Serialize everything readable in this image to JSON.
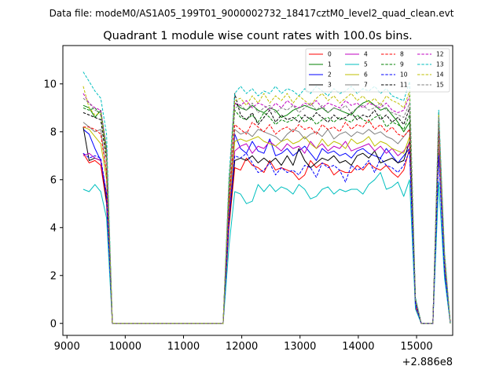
{
  "suptitle": "Data file: modeM0/AS1A05_199T01_9000002732_18417cztM0_level2_quad_clean.evt",
  "chart_data": {
    "type": "line",
    "title": "Quadrant 1 module wise count rates with 100.0s bins.",
    "xlabel": "",
    "ylabel": "",
    "x_offset_label": "+2.886e8",
    "xlim": [
      8930,
      15620
    ],
    "ylim": [
      -0.5,
      11.6
    ],
    "xticks": [
      9000,
      10000,
      11000,
      12000,
      13000,
      14000,
      15000
    ],
    "yticks": [
      0,
      2,
      4,
      6,
      8,
      10
    ],
    "grid": false,
    "legend_position": "top-right",
    "x": [
      9280,
      9380,
      9480,
      9580,
      9680,
      9780,
      9880,
      9980,
      10080,
      10180,
      10280,
      10380,
      10480,
      10580,
      10680,
      10780,
      10880,
      10980,
      11080,
      11180,
      11280,
      11380,
      11480,
      11580,
      11680,
      11780,
      11880,
      11980,
      12080,
      12180,
      12280,
      12380,
      12480,
      12580,
      12680,
      12780,
      12880,
      12980,
      13080,
      13180,
      13280,
      13380,
      13480,
      13580,
      13680,
      13780,
      13880,
      13980,
      14080,
      14180,
      14280,
      14380,
      14480,
      14580,
      14680,
      14780,
      14880,
      14980,
      15080,
      15180,
      15280,
      15380,
      15480,
      15580
    ],
    "series": [
      {
        "name": "0",
        "color": "#ff0000",
        "style": "solid",
        "values": [
          7.1,
          6.7,
          6.8,
          6.6,
          5.0,
          0,
          0,
          0,
          0,
          0,
          0,
          0,
          0,
          0,
          0,
          0,
          0,
          0,
          0,
          0,
          0,
          0,
          0,
          0,
          0,
          4.0,
          6.5,
          6.4,
          6.9,
          6.6,
          6.5,
          6.3,
          6.8,
          6.4,
          6.5,
          6.4,
          6.3,
          6.0,
          6.2,
          6.8,
          6.5,
          6.7,
          6.6,
          6.2,
          6.4,
          6.3,
          6.3,
          6.6,
          6.4,
          6.7,
          6.5,
          6.4,
          6.6,
          6.3,
          6.1,
          6.4,
          7.3,
          0.7,
          0,
          0,
          0,
          7.2,
          2.5,
          0
        ]
      },
      {
        "name": "1",
        "color": "#008000",
        "style": "solid",
        "values": [
          9.1,
          9.0,
          8.6,
          8.9,
          7.3,
          0,
          0,
          0,
          0,
          0,
          0,
          0,
          0,
          0,
          0,
          0,
          0,
          0,
          0,
          0,
          0,
          0,
          0,
          0,
          0,
          5.8,
          9.2,
          9.0,
          8.9,
          9.1,
          8.9,
          8.8,
          9.0,
          8.9,
          8.6,
          8.7,
          8.9,
          9.0,
          9.1,
          9.0,
          8.9,
          9.0,
          8.8,
          9.0,
          8.9,
          8.8,
          8.7,
          9.0,
          9.2,
          9.3,
          9.1,
          8.9,
          9.0,
          8.7,
          8.4,
          8.0,
          8.4,
          1.0,
          0,
          0,
          0,
          8.3,
          2.7,
          0
        ]
      },
      {
        "name": "2",
        "color": "#0000ff",
        "style": "solid",
        "values": [
          8.1,
          7.9,
          7.3,
          6.8,
          5.4,
          0,
          0,
          0,
          0,
          0,
          0,
          0,
          0,
          0,
          0,
          0,
          0,
          0,
          0,
          0,
          0,
          0,
          0,
          0,
          0,
          4.5,
          7.9,
          7.3,
          7.1,
          7.6,
          7.2,
          7.1,
          7.7,
          7.0,
          7.1,
          7.3,
          7.0,
          7.2,
          7.4,
          7.1,
          6.8,
          7.3,
          7.1,
          7.2,
          7.0,
          7.1,
          6.9,
          7.2,
          7.3,
          7.1,
          7.0,
          6.9,
          7.3,
          7.0,
          6.7,
          7.0,
          7.3,
          0.8,
          0,
          0,
          0,
          7.4,
          2.1,
          0
        ]
      },
      {
        "name": "3",
        "color": "#000000",
        "style": "solid",
        "values": [
          8.2,
          6.8,
          6.9,
          6.8,
          5.1,
          0,
          0,
          0,
          0,
          0,
          0,
          0,
          0,
          0,
          0,
          0,
          0,
          0,
          0,
          0,
          0,
          0,
          0,
          0,
          0,
          4.2,
          6.8,
          6.9,
          6.8,
          7.0,
          6.7,
          6.9,
          6.7,
          6.9,
          6.6,
          7.0,
          6.6,
          7.3,
          6.8,
          6.5,
          6.7,
          6.9,
          6.8,
          7.0,
          6.7,
          6.8,
          6.6,
          7.0,
          7.1,
          6.9,
          7.2,
          6.7,
          6.8,
          6.9,
          6.7,
          6.8,
          7.6,
          0.8,
          0,
          0,
          0,
          7.4,
          2.3,
          0
        ]
      },
      {
        "name": "4",
        "color": "#c000c0",
        "style": "solid",
        "values": [
          7.0,
          7.1,
          6.9,
          6.8,
          5.3,
          0,
          0,
          0,
          0,
          0,
          0,
          0,
          0,
          0,
          0,
          0,
          0,
          0,
          0,
          0,
          0,
          0,
          0,
          0,
          0,
          4.4,
          7.2,
          7.4,
          7.5,
          7.1,
          7.4,
          7.3,
          7.6,
          7.4,
          7.2,
          7.5,
          7.3,
          7.4,
          7.1,
          7.6,
          7.3,
          7.5,
          7.2,
          7.4,
          7.3,
          7.6,
          7.2,
          7.3,
          7.4,
          7.5,
          7.2,
          7.4,
          7.1,
          7.3,
          7.0,
          7.2,
          7.5,
          0.8,
          0,
          0,
          0,
          7.6,
          2.4,
          0
        ]
      },
      {
        "name": "5",
        "color": "#00bfbf",
        "style": "solid",
        "values": [
          5.6,
          5.5,
          5.8,
          5.5,
          4.4,
          0,
          0,
          0,
          0,
          0,
          0,
          0,
          0,
          0,
          0,
          0,
          0,
          0,
          0,
          0,
          0,
          0,
          0,
          0,
          0,
          3.2,
          5.5,
          5.4,
          5.0,
          5.1,
          5.8,
          5.5,
          5.8,
          5.5,
          5.7,
          5.6,
          5.4,
          5.8,
          5.6,
          5.2,
          5.3,
          5.6,
          5.7,
          5.4,
          5.6,
          5.5,
          5.6,
          5.6,
          5.4,
          5.8,
          6.0,
          6.3,
          5.6,
          5.7,
          5.9,
          5.3,
          6.0,
          0.6,
          0,
          0,
          0,
          5.9,
          1.9,
          0
        ]
      },
      {
        "name": "6",
        "color": "#bfbf00",
        "style": "solid",
        "values": [
          8.2,
          8.1,
          7.8,
          7.5,
          6.0,
          0,
          0,
          0,
          0,
          0,
          0,
          0,
          0,
          0,
          0,
          0,
          0,
          0,
          0,
          0,
          0,
          0,
          0,
          0,
          0,
          4.8,
          7.6,
          7.7,
          7.6,
          7.7,
          7.8,
          7.6,
          7.5,
          7.4,
          7.6,
          7.7,
          7.5,
          7.6,
          7.8,
          7.5,
          7.3,
          7.7,
          7.4,
          7.6,
          7.5,
          7.3,
          7.7,
          7.5,
          7.6,
          7.8,
          7.4,
          7.6,
          7.5,
          7.3,
          7.2,
          7.1,
          7.8,
          0.9,
          0,
          0,
          0,
          7.8,
          2.5,
          0
        ]
      },
      {
        "name": "7",
        "color": "#808080",
        "style": "solid",
        "values": [
          8.4,
          8.2,
          8.0,
          8.1,
          6.3,
          0,
          0,
          0,
          0,
          0,
          0,
          0,
          0,
          0,
          0,
          0,
          0,
          0,
          0,
          0,
          0,
          0,
          0,
          0,
          0,
          5.0,
          8.1,
          7.9,
          8.0,
          7.8,
          8.1,
          8.0,
          7.9,
          7.8,
          7.6,
          7.9,
          8.1,
          8.0,
          7.7,
          7.9,
          8.0,
          7.8,
          8.1,
          7.7,
          7.9,
          8.0,
          7.8,
          8.0,
          7.9,
          8.1,
          7.9,
          8.0,
          7.8,
          7.7,
          7.5,
          7.8,
          8.1,
          0.9,
          0,
          0,
          0,
          8.0,
          2.6,
          0
        ]
      },
      {
        "name": "8",
        "color": "#ff0000",
        "style": "dashed",
        "values": [
          8.2,
          8.2,
          8.1,
          7.9,
          6.3,
          0,
          0,
          0,
          0,
          0,
          0,
          0,
          0,
          0,
          0,
          0,
          0,
          0,
          0,
          0,
          0,
          0,
          0,
          0,
          0,
          5.0,
          8.3,
          8.1,
          7.9,
          8.4,
          8.2,
          8.0,
          8.3,
          7.9,
          8.1,
          8.2,
          8.0,
          8.3,
          8.1,
          8.2,
          7.9,
          8.3,
          8.1,
          8.2,
          8.0,
          8.4,
          8.1,
          8.3,
          8.2,
          8.5,
          8.1,
          8.3,
          8.0,
          8.2,
          7.9,
          7.8,
          8.1,
          0.9,
          0,
          0,
          0,
          8.2,
          2.6,
          0
        ]
      },
      {
        "name": "9",
        "color": "#008000",
        "style": "dashed",
        "values": [
          9.0,
          8.9,
          9.0,
          8.7,
          7.0,
          0,
          0,
          0,
          0,
          0,
          0,
          0,
          0,
          0,
          0,
          0,
          0,
          0,
          0,
          0,
          0,
          0,
          0,
          0,
          0,
          5.6,
          8.9,
          8.6,
          8.5,
          8.7,
          8.4,
          8.8,
          8.6,
          8.3,
          8.5,
          8.4,
          8.5,
          8.7,
          8.4,
          8.6,
          8.3,
          8.5,
          8.6,
          8.4,
          8.6,
          8.5,
          8.4,
          8.7,
          8.5,
          8.4,
          8.6,
          8.7,
          8.2,
          8.4,
          8.3,
          8.1,
          8.7,
          1.0,
          0,
          0,
          0,
          8.5,
          2.8,
          0
        ]
      },
      {
        "name": "10",
        "color": "#0000ff",
        "style": "dashed",
        "values": [
          7.1,
          6.9,
          7.0,
          6.9,
          5.4,
          0,
          0,
          0,
          0,
          0,
          0,
          0,
          0,
          0,
          0,
          0,
          0,
          0,
          0,
          0,
          0,
          0,
          0,
          0,
          0,
          4.3,
          7.0,
          6.9,
          7.1,
          6.7,
          6.3,
          6.4,
          6.7,
          6.2,
          6.5,
          6.3,
          6.4,
          6.2,
          6.6,
          6.5,
          6.1,
          6.7,
          6.5,
          6.6,
          6.4,
          5.9,
          6.6,
          6.4,
          6.5,
          6.8,
          6.3,
          6.9,
          6.6,
          6.5,
          6.3,
          6.6,
          7.2,
          0.8,
          0,
          0,
          0,
          7.0,
          2.2,
          0
        ]
      },
      {
        "name": "11",
        "color": "#000000",
        "style": "dashed",
        "values": [
          8.8,
          8.7,
          8.6,
          8.5,
          6.8,
          0,
          0,
          0,
          0,
          0,
          0,
          0,
          0,
          0,
          0,
          0,
          0,
          0,
          0,
          0,
          0,
          0,
          0,
          0,
          0,
          5.4,
          9.6,
          8.7,
          8.5,
          8.8,
          8.3,
          8.6,
          8.9,
          8.4,
          8.7,
          8.5,
          8.6,
          8.4,
          8.7,
          8.5,
          8.8,
          8.6,
          8.4,
          8.7,
          8.5,
          8.6,
          8.8,
          8.5,
          8.7,
          8.6,
          8.9,
          8.5,
          8.7,
          8.4,
          8.6,
          8.3,
          9.0,
          1.0,
          0,
          0,
          0,
          8.8,
          2.8,
          0
        ]
      },
      {
        "name": "12",
        "color": "#c000c0",
        "style": "dashed",
        "values": [
          9.6,
          9.2,
          9.0,
          8.9,
          7.2,
          0,
          0,
          0,
          0,
          0,
          0,
          0,
          0,
          0,
          0,
          0,
          0,
          0,
          0,
          0,
          0,
          0,
          0,
          0,
          0,
          5.7,
          9.2,
          9.1,
          9.3,
          9.0,
          9.2,
          9.1,
          8.9,
          9.2,
          9.0,
          9.3,
          9.1,
          9.0,
          9.2,
          9.1,
          9.3,
          9.0,
          9.2,
          9.1,
          9.0,
          9.3,
          9.1,
          9.2,
          9.0,
          9.2,
          9.1,
          9.0,
          9.2,
          8.9,
          8.8,
          8.9,
          9.5,
          1.0,
          0,
          0,
          0,
          8.4,
          2.9,
          0
        ]
      },
      {
        "name": "13",
        "color": "#00bfbf",
        "style": "dashed",
        "values": [
          10.5,
          10.1,
          9.7,
          9.4,
          7.9,
          0,
          0,
          0,
          0,
          0,
          0,
          0,
          0,
          0,
          0,
          0,
          0,
          0,
          0,
          0,
          0,
          0,
          0,
          0,
          0,
          6.1,
          9.6,
          9.9,
          9.6,
          9.8,
          9.5,
          9.7,
          9.6,
          9.9,
          9.6,
          9.8,
          9.7,
          9.5,
          9.8,
          9.6,
          9.9,
          9.7,
          9.5,
          9.8,
          9.6,
          9.7,
          9.9,
          9.6,
          9.8,
          9.7,
          9.9,
          9.6,
          9.8,
          9.5,
          9.4,
          9.3,
          10.1,
          1.1,
          0,
          0,
          0,
          8.9,
          3.0,
          0
        ]
      },
      {
        "name": "14",
        "color": "#bfbf00",
        "style": "dashed",
        "values": [
          9.9,
          9.0,
          8.7,
          8.8,
          7.0,
          0,
          0,
          0,
          0,
          0,
          0,
          0,
          0,
          0,
          0,
          0,
          0,
          0,
          0,
          0,
          0,
          0,
          0,
          0,
          0,
          5.7,
          9.3,
          9.4,
          9.1,
          9.5,
          9.2,
          9.6,
          9.2,
          9.5,
          9.3,
          9.6,
          9.2,
          9.5,
          9.3,
          9.1,
          9.4,
          9.6,
          9.3,
          9.5,
          9.2,
          9.4,
          9.6,
          9.3,
          9.5,
          9.2,
          9.4,
          9.1,
          9.5,
          9.3,
          9.2,
          9.0,
          9.7,
          1.0,
          0,
          0,
          0,
          8.7,
          2.9,
          0
        ]
      },
      {
        "name": "15",
        "color": "#808080",
        "style": "dashed",
        "values": [
          9.4,
          9.2,
          8.9,
          8.8,
          7.1,
          0,
          0,
          0,
          0,
          0,
          0,
          0,
          0,
          0,
          0,
          0,
          0,
          0,
          0,
          0,
          0,
          0,
          0,
          0,
          0,
          5.6,
          9.0,
          9.1,
          8.9,
          9.2,
          8.8,
          9.0,
          9.1,
          8.8,
          9.0,
          8.9,
          9.1,
          8.8,
          9.0,
          9.2,
          8.9,
          9.1,
          8.8,
          9.0,
          8.9,
          9.1,
          8.8,
          9.0,
          9.1,
          8.9,
          9.0,
          9.2,
          8.9,
          8.8,
          8.7,
          8.6,
          9.2,
          1.0,
          0,
          0,
          0,
          8.6,
          2.8,
          0
        ]
      }
    ]
  }
}
